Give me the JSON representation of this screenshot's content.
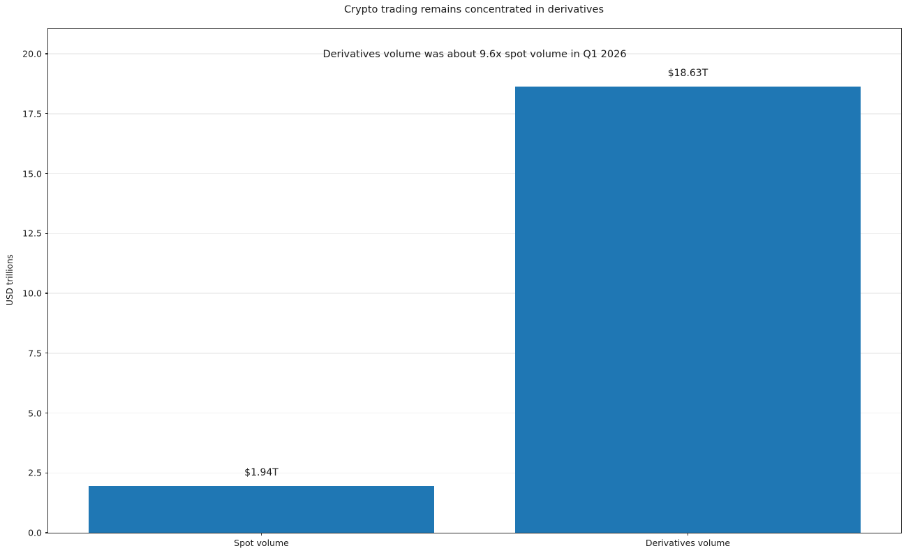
{
  "chart_data": {
    "type": "bar",
    "title": "Crypto trading remains concentrated in derivatives",
    "annotation": "Derivatives volume was about 9.6x spot volume in Q1 2026",
    "categories": [
      "Spot volume",
      "Derivatives volume"
    ],
    "values": [
      1.94,
      18.63
    ],
    "value_labels": [
      "$1.94T",
      "$18.63T"
    ],
    "xlabel": "",
    "ylabel": "USD trillions",
    "yticks": [
      0.0,
      2.5,
      5.0,
      7.5,
      10.0,
      12.5,
      15.0,
      17.5,
      20.0
    ],
    "ytick_labels": [
      "0.0",
      "2.5",
      "5.0",
      "7.5",
      "10.0",
      "12.5",
      "15.0",
      "17.5",
      "20.0"
    ],
    "ylim": [
      0,
      21.05
    ],
    "grid": "horizontal-only",
    "legend": "none",
    "bar_color": "#1f77b4",
    "gridline_color": "#f0f0f0",
    "spine_color": "#2e2e2e",
    "text_color": "#1a1a1a"
  }
}
